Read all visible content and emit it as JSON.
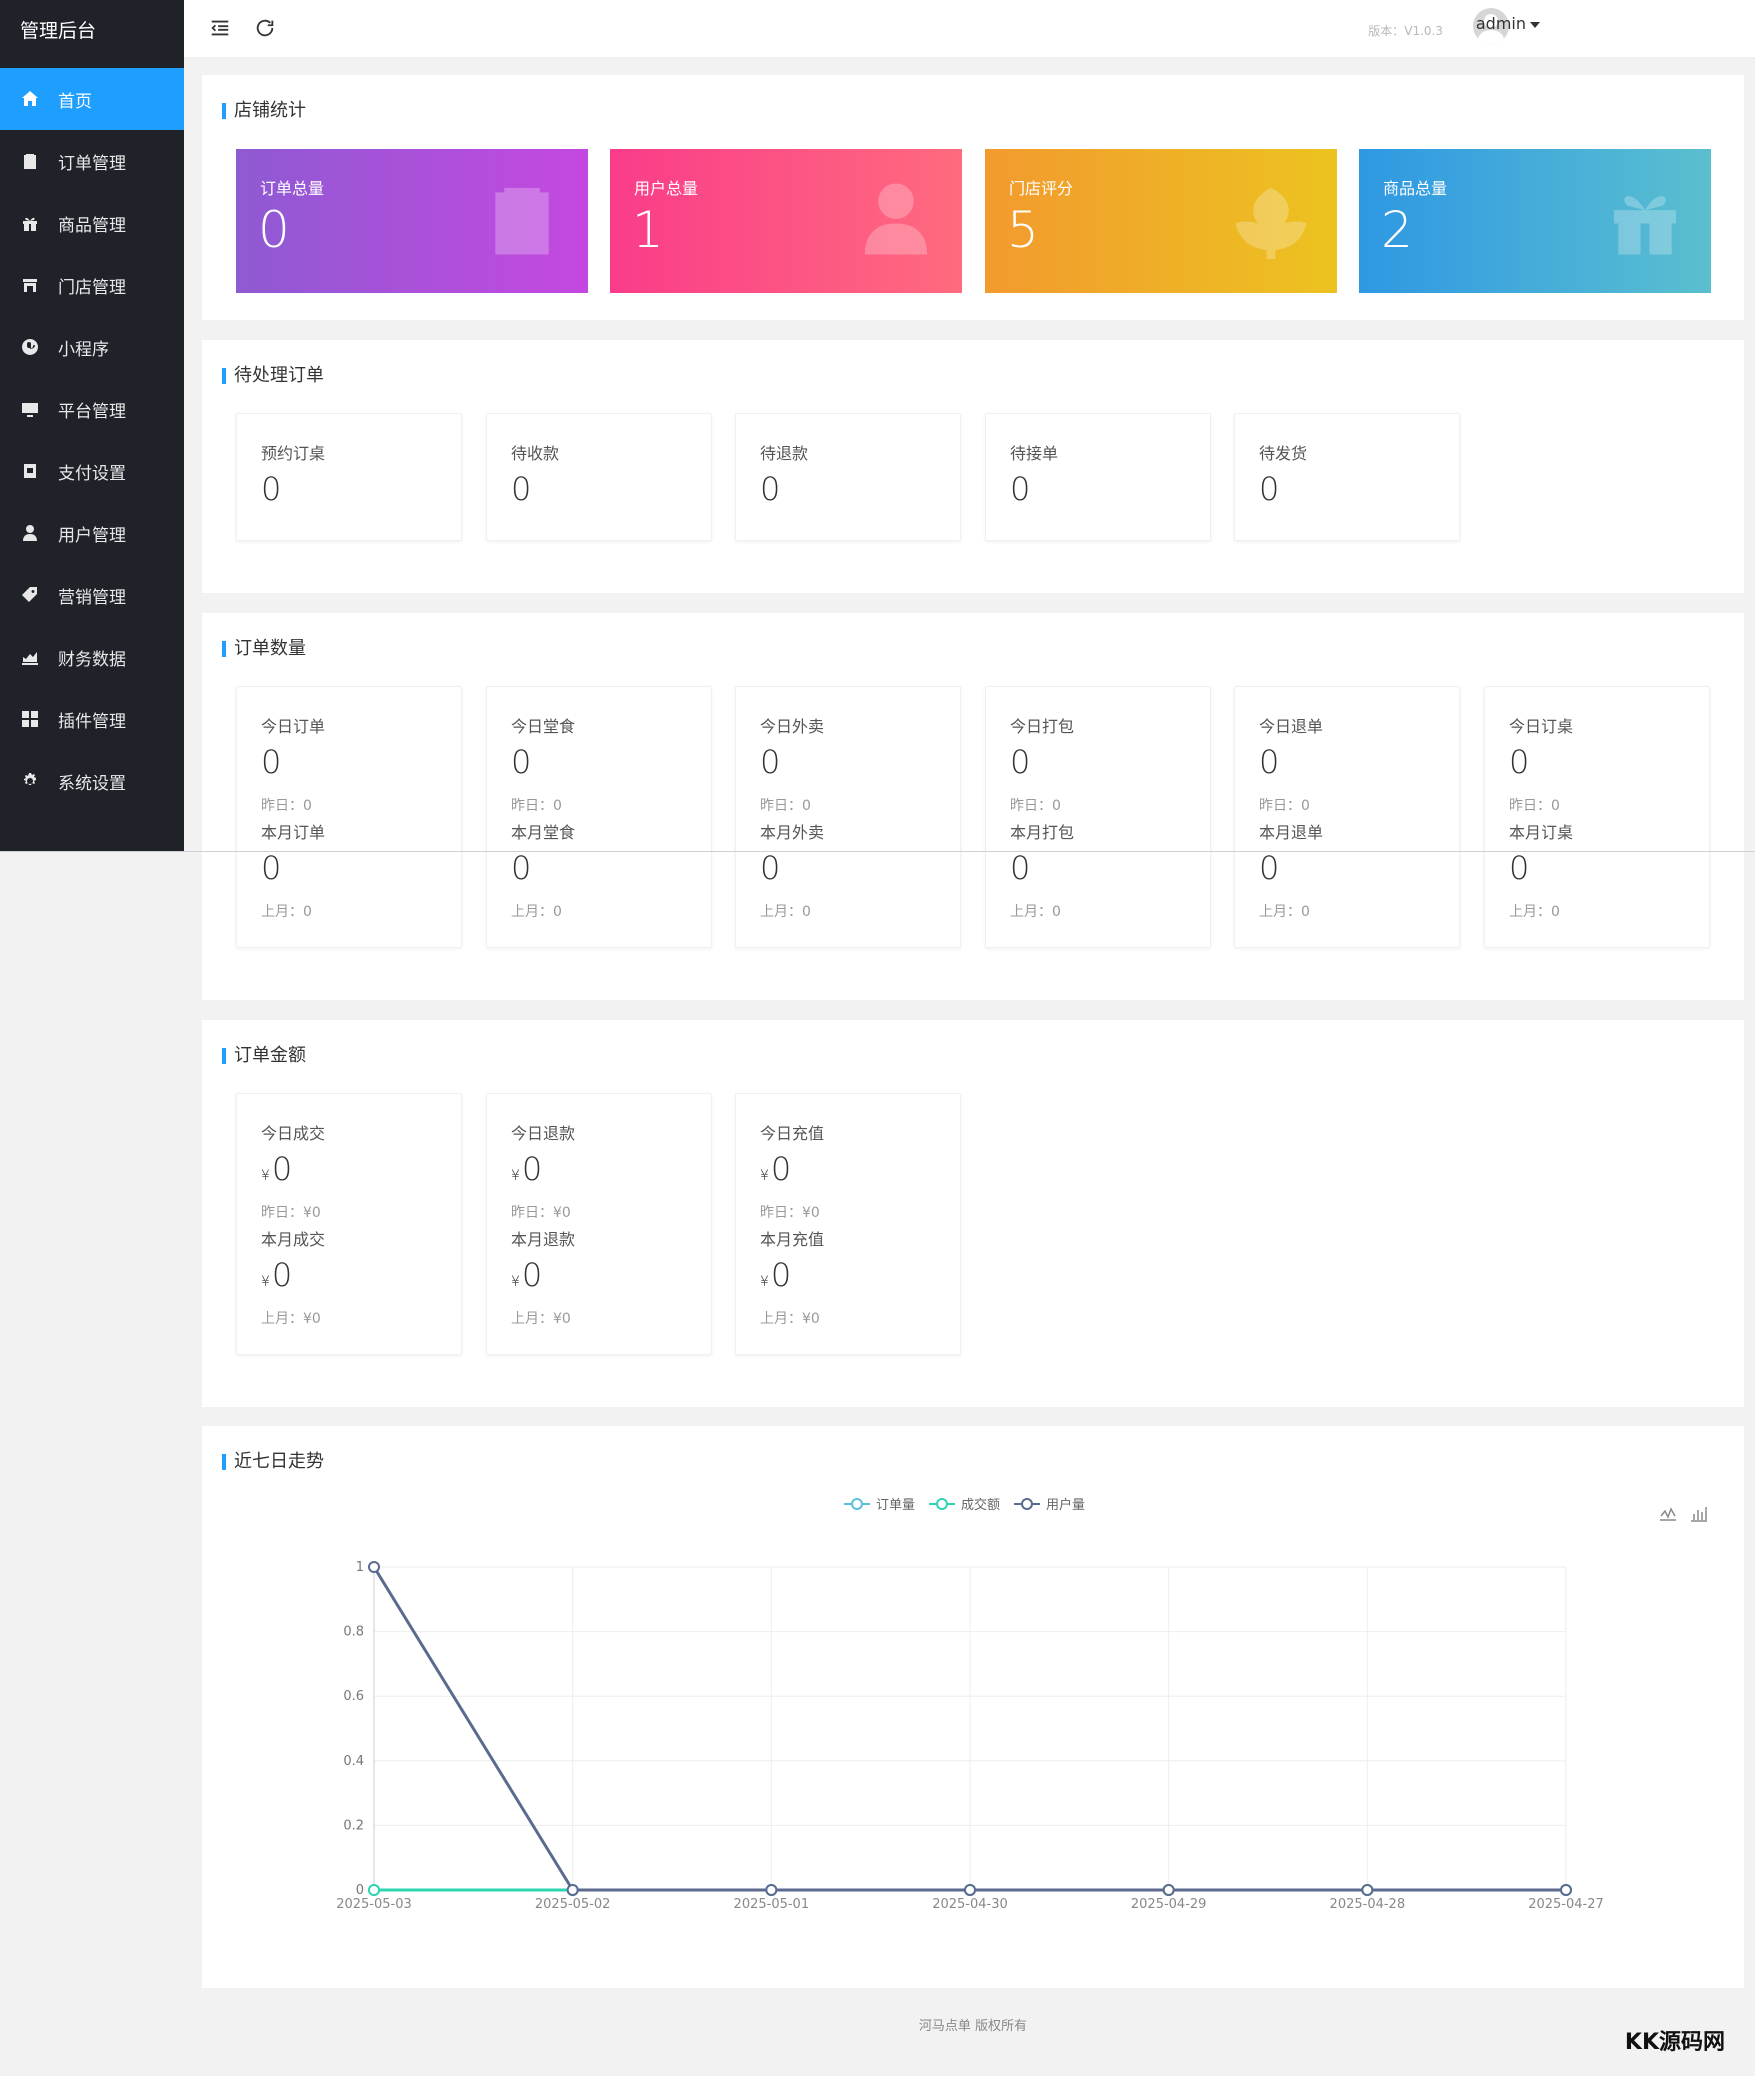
{
  "sidebar": {
    "brand": "管理后台",
    "items": [
      {
        "label": "首页",
        "icon": "home-icon",
        "active": true
      },
      {
        "label": "订单管理",
        "icon": "clipboard-icon"
      },
      {
        "label": "商品管理",
        "icon": "gift-icon"
      },
      {
        "label": "门店管理",
        "icon": "store-icon"
      },
      {
        "label": "小程序",
        "icon": "miniprogram-icon"
      },
      {
        "label": "平台管理",
        "icon": "monitor-icon"
      },
      {
        "label": "支付设置",
        "icon": "wallet-icon"
      },
      {
        "label": "用户管理",
        "icon": "user-icon"
      },
      {
        "label": "营销管理",
        "icon": "tag-icon"
      },
      {
        "label": "财务数据",
        "icon": "chart-icon"
      },
      {
        "label": "插件管理",
        "icon": "plugins-icon"
      },
      {
        "label": "系统设置",
        "icon": "gear-icon"
      }
    ]
  },
  "header": {
    "version": "版本：V1.0.3",
    "user": "admin"
  },
  "store_stats": {
    "title": "店铺统计",
    "tiles": [
      {
        "label": "订单总量",
        "value": "0",
        "icon": "clipboard-icon",
        "gradient": [
          "#8e5ad2",
          "#c548e0"
        ]
      },
      {
        "label": "用户总量",
        "value": "1",
        "icon": "user-icon",
        "gradient": [
          "#fa3c8a",
          "#ff6b7e"
        ]
      },
      {
        "label": "门店评分",
        "value": "5",
        "icon": "flower-icon",
        "gradient": [
          "#f29a2e",
          "#ecc320"
        ]
      },
      {
        "label": "商品总量",
        "value": "2",
        "icon": "gift-icon",
        "gradient": [
          "#2e98e3",
          "#5bbfcf"
        ]
      }
    ]
  },
  "pending_orders": {
    "title": "待处理订单",
    "cards": [
      {
        "label": "预约订桌",
        "value": "0"
      },
      {
        "label": "待收款",
        "value": "0"
      },
      {
        "label": "待退款",
        "value": "0"
      },
      {
        "label": "待接单",
        "value": "0"
      },
      {
        "label": "待发货",
        "value": "0"
      }
    ]
  },
  "order_count": {
    "title": "订单数量",
    "cards": [
      {
        "label": "今日订单",
        "value": "0",
        "yesterday": "昨日：0",
        "label2": "本月订单",
        "value2": "0",
        "lastmonth": "上月：0"
      },
      {
        "label": "今日堂食",
        "value": "0",
        "yesterday": "昨日：0",
        "label2": "本月堂食",
        "value2": "0",
        "lastmonth": "上月：0"
      },
      {
        "label": "今日外卖",
        "value": "0",
        "yesterday": "昨日：0",
        "label2": "本月外卖",
        "value2": "0",
        "lastmonth": "上月：0"
      },
      {
        "label": "今日打包",
        "value": "0",
        "yesterday": "昨日：0",
        "label2": "本月打包",
        "value2": "0",
        "lastmonth": "上月：0"
      },
      {
        "label": "今日退单",
        "value": "0",
        "yesterday": "昨日：0",
        "label2": "本月退单",
        "value2": "0",
        "lastmonth": "上月：0"
      },
      {
        "label": "今日订桌",
        "value": "0",
        "yesterday": "昨日：0",
        "label2": "本月订桌",
        "value2": "0",
        "lastmonth": "上月：0"
      }
    ]
  },
  "order_amount": {
    "title": "订单金额",
    "currency": "¥",
    "cards": [
      {
        "label": "今日成交",
        "value": "0",
        "yesterday": "昨日：¥0",
        "label2": "本月成交",
        "value2": "0",
        "lastmonth": "上月：¥0"
      },
      {
        "label": "今日退款",
        "value": "0",
        "yesterday": "昨日：¥0",
        "label2": "本月退款",
        "value2": "0",
        "lastmonth": "上月：¥0"
      },
      {
        "label": "今日充值",
        "value": "0",
        "yesterday": "昨日：¥0",
        "label2": "本月充值",
        "value2": "0",
        "lastmonth": "上月：¥0"
      }
    ]
  },
  "trend": {
    "title": "近七日走势"
  },
  "chart_data": {
    "type": "line",
    "title": "",
    "xlabel": "",
    "ylabel": "",
    "categories": [
      "2025-05-03",
      "2025-05-02",
      "2025-05-01",
      "2025-04-30",
      "2025-04-29",
      "2025-04-28",
      "2025-04-27"
    ],
    "ylim": [
      0,
      1
    ],
    "yticks": [
      "0",
      "0.2",
      "0.4",
      "0.6",
      "0.8",
      "1"
    ],
    "grid": true,
    "legend_position": "top-center",
    "series": [
      {
        "name": "订单量",
        "color": "#5bc0de",
        "values": [
          0,
          0,
          0,
          0,
          0,
          0,
          0
        ]
      },
      {
        "name": "成交额",
        "color": "#2fd5b0",
        "values": [
          0,
          0,
          0,
          0,
          0,
          0,
          0
        ]
      },
      {
        "name": "用户量",
        "color": "#5b6a8f",
        "values": [
          1,
          0,
          0,
          0,
          0,
          0,
          0
        ]
      }
    ]
  },
  "footer": {
    "text": "河马点单  版权所有"
  },
  "watermark": "KK源码网"
}
